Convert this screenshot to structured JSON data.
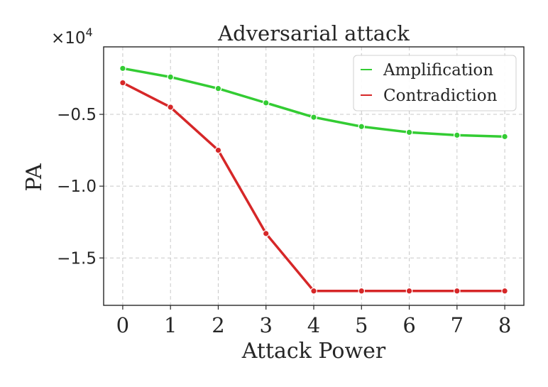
{
  "chart_data": {
    "type": "line",
    "title": "Adversarial attack",
    "xlabel": "Attack Power",
    "ylabel": "PA",
    "y_offset_base": "×10",
    "y_offset_exp": "4",
    "x": [
      0,
      1,
      2,
      3,
      4,
      5,
      6,
      7,
      8
    ],
    "xticks": [
      "0",
      "1",
      "2",
      "3",
      "4",
      "5",
      "6",
      "7",
      "8"
    ],
    "yticks": [
      {
        "value": -0.5,
        "label": "−0.5"
      },
      {
        "value": -1.0,
        "label": "−1.0"
      },
      {
        "value": -1.5,
        "label": "−1.5"
      }
    ],
    "xlim": [
      -0.4,
      8.4
    ],
    "ylim": [
      -1.83,
      -0.03
    ],
    "grid": true,
    "legend_position": "top-right",
    "series": [
      {
        "name": "Amplification",
        "color": "#33cc33",
        "values": [
          -0.18,
          -0.24,
          -0.32,
          -0.42,
          -0.52,
          -0.585,
          -0.625,
          -0.645,
          -0.655
        ]
      },
      {
        "name": "Contradiction",
        "color": "#d62728",
        "values": [
          -0.28,
          -0.45,
          -0.75,
          -1.33,
          -1.73,
          -1.73,
          -1.73,
          -1.73,
          -1.73
        ]
      }
    ]
  }
}
